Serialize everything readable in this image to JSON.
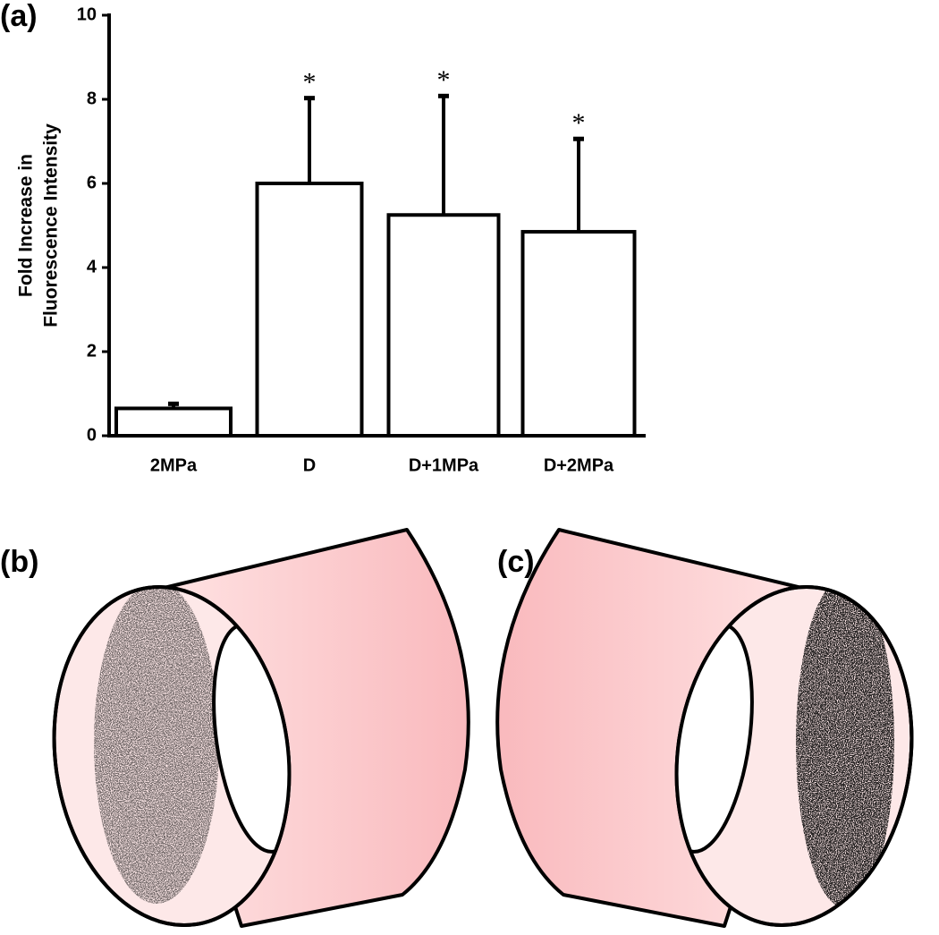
{
  "chart_data": {
    "type": "bar",
    "ylabel": [
      "Fold Increase in",
      "Fluorescence Intensity"
    ],
    "categories": [
      "2MPa",
      "D",
      "D+1MPa",
      "D+2MPa"
    ],
    "values": [
      0.65,
      6.0,
      5.25,
      4.85
    ],
    "errors": [
      0.13,
      2.05,
      2.85,
      2.23
    ],
    "annotations": [
      {
        "category": "D",
        "text": "*"
      },
      {
        "category": "D+1MPa",
        "text": "*"
      },
      {
        "category": "D+2MPa",
        "text": "*"
      }
    ],
    "color": "#ffffff",
    "edgecolor": "#000000",
    "ylim": [
      0,
      10
    ],
    "yticks": [
      0,
      2,
      4,
      6,
      8,
      10
    ],
    "grid": false
  },
  "panel_labels": [
    "(a)",
    "(b)",
    "(c)"
  ]
}
